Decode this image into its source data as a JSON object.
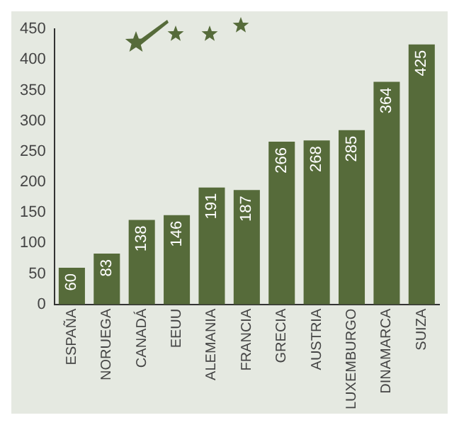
{
  "chart_data": {
    "type": "bar",
    "categories": [
      "ESPAÑA",
      "NORUEGA",
      "CANADÁ",
      "EEUU",
      "ALEMANIA",
      "FRANCIA",
      "GRECIA",
      "AUSTRIA",
      "LUXEMBURGO",
      "DINAMARCA",
      "SUIZA"
    ],
    "values": [
      60,
      83,
      138,
      146,
      191,
      187,
      266,
      268,
      285,
      364,
      425
    ],
    "color": "#566b3a",
    "ylim": [
      0,
      450
    ],
    "yticks": [
      0,
      50,
      100,
      150,
      200,
      250,
      300,
      350,
      400,
      450
    ],
    "grid": false,
    "legend": false,
    "data_labels": true
  }
}
